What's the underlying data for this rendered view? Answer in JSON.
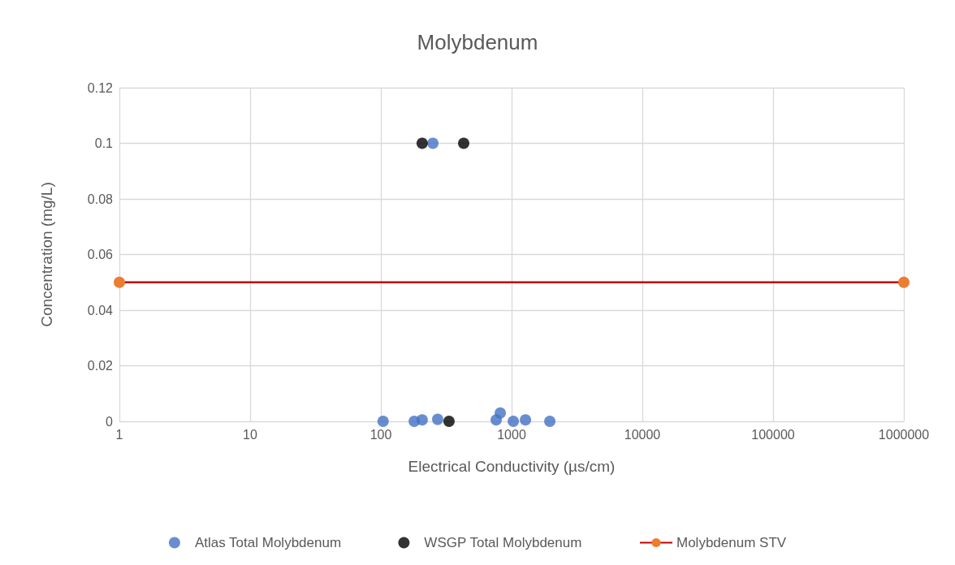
{
  "chart_data": {
    "type": "scatter",
    "title": "Molybdenum",
    "xlabel": "Electrical Conductivity (µs/cm)",
    "ylabel": "Concentration (mg/L)",
    "log": "x",
    "xlim": [
      1,
      1000000
    ],
    "xticks": [
      1,
      10,
      100,
      1000,
      10000,
      100000,
      1000000
    ],
    "ylim": [
      0,
      0.12
    ],
    "yticks": [
      0,
      0.02,
      0.04,
      0.06,
      0.08,
      0.1,
      0.12
    ],
    "grid": true,
    "legend": "bottom",
    "marker": "circle",
    "series": [
      {
        "name": "Atlas Total Molybdenum",
        "color": "#4472c4",
        "x": [
          104,
          180,
          207,
          272,
          762,
          819,
          1030,
          1276,
          1960,
          250
        ],
        "values": [
          0,
          0,
          0.0005,
          0.0007,
          0.0005,
          0.003,
          0,
          0.0005,
          0,
          0.1
        ]
      },
      {
        "name": "WSGP Total Molybdenum",
        "color": "#000000",
        "x": [
          332,
          207,
          430
        ],
        "values": [
          0,
          0.1,
          0.1
        ]
      },
      {
        "name": "Molybdenum STV",
        "type": "line",
        "color": "#c00000",
        "colors": [
          "#ed7d31",
          "#ed7d31"
        ],
        "x": [
          1,
          1000000
        ],
        "values": [
          0.05,
          0.05
        ]
      }
    ]
  }
}
